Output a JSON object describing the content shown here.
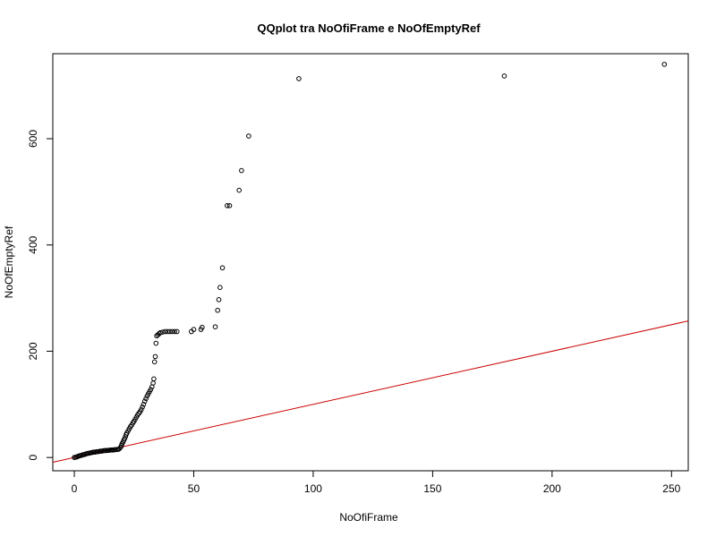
{
  "chart_data": {
    "type": "scatter",
    "title": "QQplot tra NoOfiFrame e NoOfEmptyRef",
    "xlabel": "NoOfiFrame",
    "ylabel": "NoOfEmptyRef",
    "xlim": [
      -9,
      257
    ],
    "ylim": [
      -25,
      760
    ],
    "xticks": [
      0,
      50,
      100,
      150,
      200,
      250
    ],
    "yticks": [
      0,
      200,
      400,
      600
    ],
    "grid": false,
    "legend": "none",
    "colors": {
      "points": "#000000",
      "reference_line": "#cc0000",
      "frame": "#000000"
    },
    "reference_line": {
      "slope": 1,
      "intercept": 0
    },
    "points": [
      [
        0,
        0
      ],
      [
        0.5,
        0.5
      ],
      [
        1,
        1
      ],
      [
        1.5,
        2
      ],
      [
        2,
        3
      ],
      [
        2.5,
        3.5
      ],
      [
        3,
        4
      ],
      [
        3.5,
        5
      ],
      [
        4,
        5.5
      ],
      [
        4.5,
        6
      ],
      [
        5,
        7
      ],
      [
        5.5,
        7.5
      ],
      [
        6,
        8
      ],
      [
        6.5,
        8.5
      ],
      [
        7,
        9
      ],
      [
        7.5,
        9.5
      ],
      [
        8,
        10
      ],
      [
        8.5,
        10
      ],
      [
        9,
        10.5
      ],
      [
        9.5,
        11
      ],
      [
        10,
        11
      ],
      [
        10.5,
        11.5
      ],
      [
        11,
        12
      ],
      [
        11.5,
        12
      ],
      [
        12,
        12.5
      ],
      [
        12.5,
        13
      ],
      [
        13,
        13
      ],
      [
        13.5,
        13
      ],
      [
        14,
        13.5
      ],
      [
        14.5,
        13.5
      ],
      [
        15,
        14
      ],
      [
        15.5,
        14
      ],
      [
        16,
        14
      ],
      [
        16.5,
        14.5
      ],
      [
        17,
        14.5
      ],
      [
        17.5,
        15
      ],
      [
        18,
        15
      ],
      [
        18.5,
        15.5
      ],
      [
        19,
        17
      ],
      [
        19.5,
        20
      ],
      [
        19.8,
        23
      ],
      [
        20,
        26
      ],
      [
        20.4,
        29
      ],
      [
        20.7,
        32
      ],
      [
        21,
        35
      ],
      [
        21.4,
        39
      ],
      [
        21.7,
        43
      ],
      [
        22,
        46
      ],
      [
        22.5,
        50
      ],
      [
        23,
        54
      ],
      [
        23.5,
        58
      ],
      [
        24,
        61
      ],
      [
        24.5,
        65
      ],
      [
        25,
        68
      ],
      [
        25.5,
        72
      ],
      [
        26,
        76
      ],
      [
        26.5,
        80
      ],
      [
        27,
        83
      ],
      [
        27.5,
        86
      ],
      [
        28,
        90
      ],
      [
        28.5,
        95
      ],
      [
        29,
        100
      ],
      [
        29.5,
        106
      ],
      [
        30,
        111
      ],
      [
        30.5,
        116
      ],
      [
        31,
        120
      ],
      [
        31.5,
        124
      ],
      [
        32,
        128
      ],
      [
        32.5,
        133
      ],
      [
        33,
        140
      ],
      [
        33.3,
        148
      ],
      [
        33.6,
        180
      ],
      [
        33.9,
        190
      ],
      [
        34.2,
        215
      ],
      [
        34.5,
        229
      ],
      [
        35,
        231
      ],
      [
        35.5,
        233
      ],
      [
        36,
        235
      ],
      [
        37,
        236
      ],
      [
        38,
        237
      ],
      [
        39,
        237
      ],
      [
        40,
        237
      ],
      [
        41,
        237
      ],
      [
        42,
        237
      ],
      [
        43,
        237
      ],
      [
        49,
        237
      ],
      [
        50,
        241
      ],
      [
        53,
        241
      ],
      [
        53.5,
        245
      ],
      [
        59,
        246
      ],
      [
        60,
        277
      ],
      [
        60.5,
        297
      ],
      [
        61,
        320
      ],
      [
        62,
        357
      ],
      [
        64,
        474
      ],
      [
        65,
        474
      ],
      [
        69,
        503
      ],
      [
        70,
        540
      ],
      [
        73,
        605
      ],
      [
        94,
        713
      ],
      [
        180,
        718
      ],
      [
        247,
        740
      ]
    ]
  }
}
